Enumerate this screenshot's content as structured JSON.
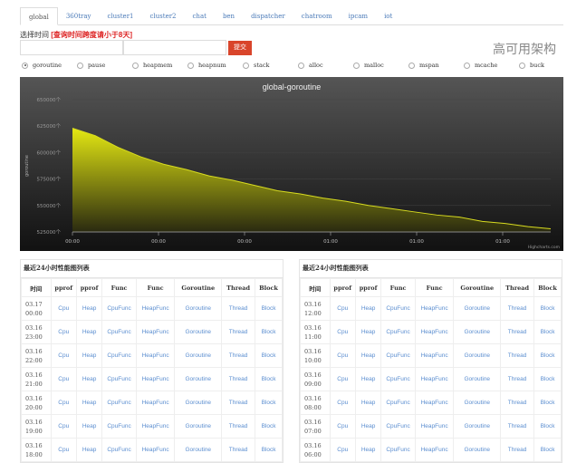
{
  "tabs": [
    "global",
    "360tray",
    "cluster1",
    "cluster2",
    "chat",
    "ben",
    "dispatcher",
    "chatroom",
    "ipcam",
    "iot"
  ],
  "active_tab": "global",
  "time_label": "选择时间",
  "time_warning": "[查询时间跨度请小于8天]",
  "start_input": {
    "value": "",
    "placeholder": ""
  },
  "end_input": {
    "value": "",
    "placeholder": ""
  },
  "submit_label": "提交",
  "radios": [
    "goroutine",
    "pause",
    "heapmem",
    "heapnum",
    "stack",
    "alloc",
    "malloc",
    "mspan",
    "mcache",
    "buck"
  ],
  "selected_radio": "goroutine",
  "chart_data": {
    "type": "area",
    "title": "global-goroutine",
    "ylabel": "goroutine",
    "ylim": [
      525000,
      650000
    ],
    "yticks": [
      "525000个",
      "550000个",
      "575000个",
      "600000个",
      "625000个",
      "650000个"
    ],
    "xticks": [
      "00:00",
      "00:00",
      "00:00",
      "01:00",
      "01:00",
      "01:00"
    ],
    "values": [
      623000,
      616000,
      605000,
      596000,
      589000,
      584000,
      578000,
      574000,
      569000,
      564000,
      561000,
      557000,
      554000,
      550000,
      547000,
      544000,
      541000,
      539000,
      535000,
      533000,
      530000,
      528000
    ],
    "credits": "Highcharts.com",
    "colors": {
      "fill_top": "#e4e812",
      "fill_bottom": "#2a2a10",
      "background_top": "#555555",
      "background_bottom": "#111111"
    }
  },
  "table_title": "最近24小时性能图列表",
  "columns": [
    "时间",
    "pprof",
    "pprof",
    "Func",
    "Func",
    "Goroutine",
    "Thread",
    "Block"
  ],
  "link_labels": [
    "Cpu",
    "Heap",
    "CpuFunc",
    "HeapFunc",
    "Goroutine",
    "Thread",
    "Block"
  ],
  "left_rows": [
    [
      "03.17",
      "00:00"
    ],
    [
      "03.16",
      "23:00"
    ],
    [
      "03.16",
      "22:00"
    ],
    [
      "03.16",
      "21:00"
    ],
    [
      "03.16",
      "20:00"
    ],
    [
      "03.16",
      "19:00"
    ],
    [
      "03.16",
      "18:00"
    ]
  ],
  "right_rows": [
    [
      "03.16",
      "12:00"
    ],
    [
      "03.16",
      "11:00"
    ],
    [
      "03.16",
      "10:00"
    ],
    [
      "03.16",
      "09:00"
    ],
    [
      "03.16",
      "08:00"
    ],
    [
      "03.16",
      "07:00"
    ],
    [
      "03.16",
      "06:00"
    ]
  ],
  "watermark": "高可用架构"
}
